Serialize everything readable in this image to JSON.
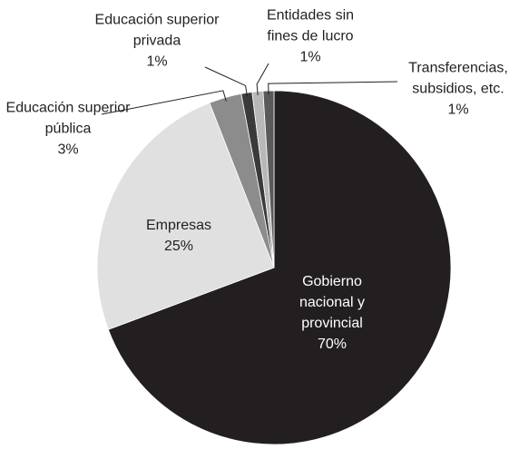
{
  "chart_data": {
    "type": "pie",
    "categories": [
      "Gobierno nacional y provincial",
      "Empresas",
      "Educación superior pública",
      "Educación superior privada",
      "Entidades sin fines de lucro",
      "Transferencias, subsidios, etc."
    ],
    "values": [
      70,
      25,
      3,
      1,
      1,
      1
    ],
    "value_labels": [
      "70%",
      "25%",
      "3%",
      "1%",
      "1%",
      "1%"
    ],
    "colors": [
      "#231f20",
      "#e0e0e0",
      "#8c8c8c",
      "#3a3a3a",
      "#b8b8b8",
      "#5a5a5a"
    ],
    "start_angle": 0,
    "direction": "clockwise"
  }
}
